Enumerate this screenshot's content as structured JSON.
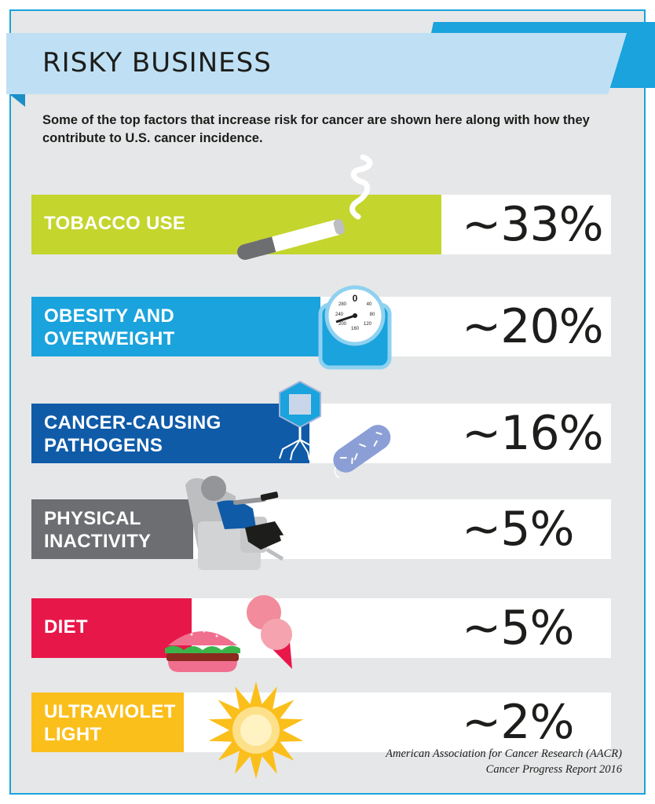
{
  "title": "RISKY BUSINESS",
  "subtitle": "Some of the top factors that increase risk for cancer are shown here along with how they contribute to U.S. cancer incidence.",
  "source": {
    "line1": "American Association for Cancer Research (AACR)",
    "line2": "Cancer Progress Report 2016"
  },
  "scale_labels": [
    "0",
    "40",
    "80",
    "120",
    "160",
    "200",
    "240",
    "280"
  ],
  "colors": {
    "tobacco": "#c4d52d",
    "obesity": "#1aa3dd",
    "pathogens": "#0f5ba8",
    "inactivity": "#6d6e71",
    "diet": "#e8174a",
    "uv": "#fbbf1c",
    "frame": "#1aa3dd",
    "banner": "#bfe0f4",
    "background": "#e6e7e8"
  },
  "icons": [
    "cigarette-icon",
    "scale-icon",
    "virus-icon",
    "bacteria-icon",
    "recliner-person-icon",
    "burger-icon",
    "ice-cream-icon",
    "sun-icon"
  ],
  "chart_data": {
    "type": "bar",
    "title": "RISKY BUSINESS",
    "categories": [
      "TOBACCO USE",
      "OBESITY AND\nOVERWEIGHT",
      "CANCER-CAUSING\nPATHOGENS",
      "PHYSICAL\nINACTIVITY",
      "DIET",
      "ULTRAVIOLET\nLIGHT"
    ],
    "values": [
      33,
      20,
      16,
      5,
      5,
      2
    ],
    "value_labels": [
      "~33%",
      "~20%",
      "~16%",
      "~5%",
      "~5%",
      "~2%"
    ],
    "unit": "%"
  }
}
